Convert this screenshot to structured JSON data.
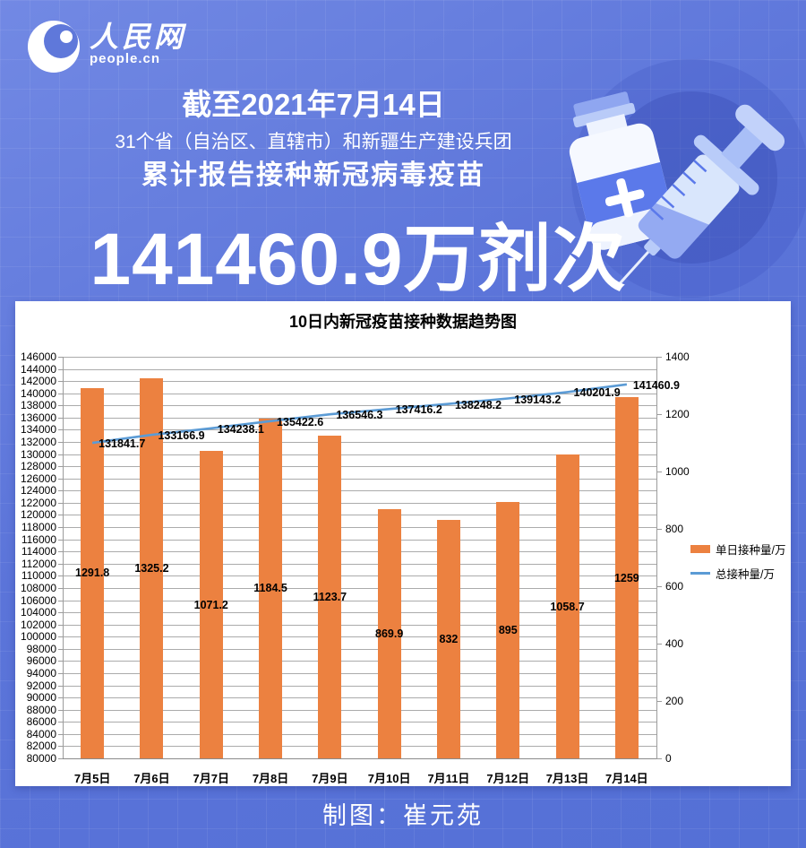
{
  "brand": {
    "logo_text": "人民网",
    "logo_subtext": "people.cn"
  },
  "header": {
    "date_line": "截至2021年7月14日",
    "scope_line": "31个省（自治区、直辖市）和新疆生产建设兵团",
    "title_line": "累计报告接种新冠病毒疫苗",
    "headline_number": "141460.9万剂次"
  },
  "footer": {
    "credit": "制图：崔元苑"
  },
  "colors": {
    "background": "#5b74d9",
    "panel": "#ffffff",
    "bar": "#EC8140",
    "line": "#5B9BD5",
    "grid": "#ababab",
    "text_on_blue": "#ffffff",
    "chart_text": "#000000"
  },
  "chart_data": {
    "type": "bar",
    "combo": "bar+line dual axis",
    "title": "10日内新冠疫苗接种数据趋势图",
    "categories": [
      "7月5日",
      "7月6日",
      "7月7日",
      "7月8日",
      "7月9日",
      "7月10日",
      "7月11日",
      "7月12日",
      "7月13日",
      "7月14日"
    ],
    "series": [
      {
        "name": "单日接种量/万",
        "type": "bar",
        "axis": "right",
        "color": "#EC8140",
        "values": [
          1291.8,
          1325.2,
          1071.2,
          1184.5,
          1123.7,
          869.9,
          832,
          895,
          1058.7,
          1259
        ]
      },
      {
        "name": "总接种量/万",
        "type": "line",
        "axis": "left",
        "color": "#5B9BD5",
        "values": [
          131841.7,
          133166.9,
          134238.1,
          135422.6,
          136546.3,
          137416.2,
          138248.2,
          139143.2,
          140201.9,
          141460.9
        ]
      }
    ],
    "left_axis": {
      "min": 80000,
      "max": 146000,
      "step": 2000
    },
    "right_axis": {
      "min": 0,
      "max": 1400,
      "step": 200
    },
    "legend_position": "right",
    "grid": true
  }
}
